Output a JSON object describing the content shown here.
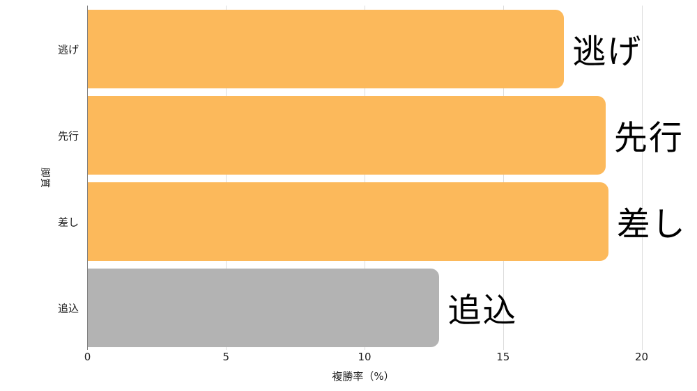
{
  "chart_data": {
    "type": "bar",
    "orientation": "horizontal",
    "title": "",
    "categories": [
      "逃げ",
      "先行",
      "差し",
      "追込"
    ],
    "values": [
      17.2,
      18.7,
      18.8,
      12.7
    ],
    "bar_colors": [
      "#FCB95B",
      "#FCB95B",
      "#FCB95B",
      "#B3B3B3"
    ],
    "bar_annotations": [
      "逃げ",
      "先行",
      "差し",
      "追込"
    ],
    "xlabel": "複勝率（%）",
    "ylabel": "脚質",
    "xlim": [
      0,
      21.5
    ],
    "xticks": [
      0,
      5,
      10,
      15,
      20
    ],
    "grid": "vertical-gridlines-on",
    "legend": "none",
    "colors": {
      "accent": "#FCB95B",
      "muted": "#B3B3B3",
      "gridline": "#DCDCDC",
      "axis_line": "#7F7F7F",
      "text": "#1A1A1A",
      "background": "#FFFFFF"
    }
  }
}
